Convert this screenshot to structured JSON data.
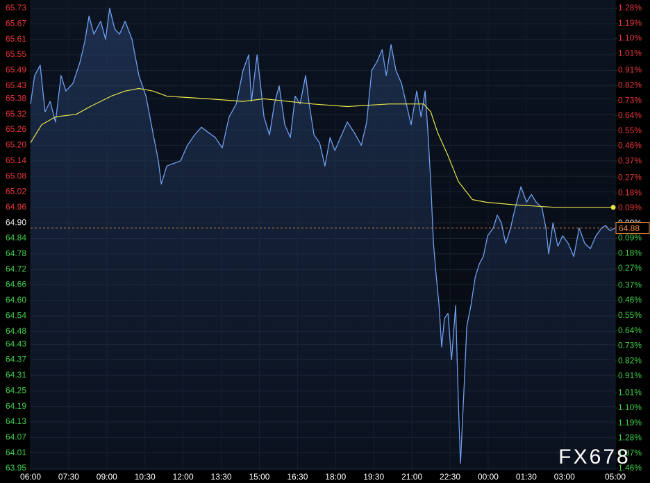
{
  "chart_data": {
    "type": "line",
    "watermark": "FX678",
    "current_price": 64.88,
    "xlim": [
      0,
      23
    ],
    "xticks": [
      {
        "value": 0,
        "label": "06:00"
      },
      {
        "value": 1.5,
        "label": "07:30"
      },
      {
        "value": 3,
        "label": "09:00"
      },
      {
        "value": 4.5,
        "label": "10:30"
      },
      {
        "value": 6,
        "label": "12:00"
      },
      {
        "value": 7.5,
        "label": "13:30"
      },
      {
        "value": 9,
        "label": "15:00"
      },
      {
        "value": 10.5,
        "label": "16:30"
      },
      {
        "value": 12,
        "label": "18:00"
      },
      {
        "value": 13.5,
        "label": "19:30"
      },
      {
        "value": 15,
        "label": "21:00"
      },
      {
        "value": 16.5,
        "label": "22:30"
      },
      {
        "value": 18,
        "label": "00:00"
      },
      {
        "value": 19.5,
        "label": "01:30"
      },
      {
        "value": 21,
        "label": "03:00"
      },
      {
        "value": 23,
        "label": "05:00"
      }
    ],
    "ylim": [
      63.95,
      65.73
    ],
    "yticks": [
      65.73,
      65.67,
      65.61,
      65.55,
      65.49,
      65.43,
      65.38,
      65.32,
      65.26,
      65.2,
      65.14,
      65.08,
      65.02,
      64.96,
      64.9,
      64.84,
      64.78,
      64.72,
      64.66,
      64.6,
      64.54,
      64.48,
      64.43,
      64.37,
      64.31,
      64.25,
      64.19,
      64.13,
      64.07,
      64.01,
      63.95
    ],
    "yticklabels": [
      "65.73",
      "65.67",
      "65.61",
      "65.55",
      "65.49",
      "65.43",
      "65.38",
      "65.32",
      "65.26",
      "65.20",
      "65.14",
      "65.08",
      "65.02",
      "64.96",
      "64.90",
      "64.84",
      "64.78",
      "64.72",
      "64.66",
      "64.60",
      "64.54",
      "64.48",
      "64.43",
      "64.37",
      "64.31",
      "64.25",
      "64.19",
      "64.13",
      "64.07",
      "64.01",
      "63.95"
    ],
    "y2lim": [
      -1.46,
      1.28
    ],
    "y2ticks": [
      {
        "value": 1.28,
        "label": "1.28%"
      },
      {
        "value": 1.19,
        "label": "1.19%"
      },
      {
        "value": 1.1,
        "label": "1.10%"
      },
      {
        "value": 1.01,
        "label": "1.01%"
      },
      {
        "value": 0.91,
        "label": "0.91%"
      },
      {
        "value": 0.82,
        "label": "0.82%"
      },
      {
        "value": 0.73,
        "label": "0.73%"
      },
      {
        "value": 0.64,
        "label": "0.64%"
      },
      {
        "value": 0.55,
        "label": "0.55%"
      },
      {
        "value": 0.46,
        "label": "0.46%"
      },
      {
        "value": 0.37,
        "label": "0.37%"
      },
      {
        "value": 0.27,
        "label": "0.27%"
      },
      {
        "value": 0.18,
        "label": "0.18%"
      },
      {
        "value": 0.09,
        "label": "0.09%"
      },
      {
        "value": 0,
        "label": "0.00%"
      },
      {
        "value": -0.09,
        "label": "0.09%"
      },
      {
        "value": -0.18,
        "label": "0.18%"
      },
      {
        "value": -0.27,
        "label": "0.27%"
      },
      {
        "value": -0.37,
        "label": "0.37%"
      },
      {
        "value": -0.46,
        "label": "0.46%"
      },
      {
        "value": -0.55,
        "label": "0.55%"
      },
      {
        "value": -0.64,
        "label": "0.64%"
      },
      {
        "value": -0.73,
        "label": "0.73%"
      },
      {
        "value": -0.82,
        "label": "0.82%"
      },
      {
        "value": -0.91,
        "label": "0.91%"
      },
      {
        "value": -1.01,
        "label": "1.01%"
      },
      {
        "value": -1.1,
        "label": "1.10%"
      },
      {
        "value": -1.19,
        "label": "1.19%"
      },
      {
        "value": -1.28,
        "label": "1.28%"
      },
      {
        "value": -1.37,
        "label": "1.37%"
      },
      {
        "value": -1.46,
        "label": "1.46%"
      }
    ],
    "grid": true,
    "series": [
      {
        "color": "#6f9ff0",
        "x": [
          0,
          0.16,
          0.38,
          0.57,
          0.77,
          0.98,
          1.2,
          1.39,
          1.67,
          1.94,
          2.13,
          2.3,
          2.49,
          2.76,
          2.95,
          3.11,
          3.31,
          3.5,
          3.72,
          3.99,
          4.26,
          4.54,
          4.81,
          5.03,
          5.14,
          5.36,
          5.63,
          5.9,
          6.17,
          6.45,
          6.72,
          6.99,
          7.27,
          7.54,
          7.81,
          8.09,
          8.36,
          8.58,
          8.69,
          8.91,
          9.04,
          9.18,
          9.4,
          9.59,
          9.78,
          10,
          10.22,
          10.41,
          10.6,
          10.82,
          10.96,
          11.15,
          11.37,
          11.58,
          11.78,
          11.97,
          12.19,
          12.46,
          12.73,
          13.01,
          13.22,
          13.42,
          13.61,
          13.83,
          13.99,
          14.18,
          14.37,
          14.59,
          14.78,
          14.97,
          15.19,
          15.36,
          15.52,
          15.63,
          15.74,
          15.85,
          15.96,
          16.07,
          16.17,
          16.28,
          16.42,
          16.56,
          16.72,
          16.83,
          16.91,
          17.05,
          17.16,
          17.32,
          17.49,
          17.65,
          17.81,
          17.98,
          18.2,
          18.36,
          18.52,
          18.69,
          18.88,
          19.07,
          19.29,
          19.51,
          19.7,
          19.89,
          20.11,
          20.27,
          20.38,
          20.55,
          20.74,
          20.93,
          21.15,
          21.37,
          21.58,
          21.8,
          22.02,
          22.24,
          22.46,
          22.62,
          22.79,
          23
        ],
        "values": [
          65.36,
          65.47,
          65.51,
          65.33,
          65.37,
          65.29,
          65.47,
          65.41,
          65.44,
          65.52,
          65.6,
          65.7,
          65.63,
          65.68,
          65.61,
          65.73,
          65.65,
          65.63,
          65.68,
          65.61,
          65.47,
          65.39,
          65.25,
          65.14,
          65.05,
          65.12,
          65.13,
          65.14,
          65.2,
          65.24,
          65.27,
          65.25,
          65.23,
          65.19,
          65.31,
          65.36,
          65.49,
          65.55,
          65.37,
          65.55,
          65.44,
          65.31,
          65.24,
          65.36,
          65.43,
          65.28,
          65.23,
          65.39,
          65.36,
          65.47,
          65.36,
          65.24,
          65.21,
          65.12,
          65.23,
          65.18,
          65.23,
          65.29,
          65.25,
          65.2,
          65.29,
          65.49,
          65.52,
          65.57,
          65.47,
          65.59,
          65.49,
          65.44,
          65.36,
          65.28,
          65.41,
          65.31,
          65.41,
          65.25,
          65.06,
          64.82,
          64.69,
          64.58,
          64.42,
          64.53,
          64.55,
          64.37,
          64.58,
          64.2,
          63.97,
          64.26,
          64.5,
          64.58,
          64.69,
          64.74,
          64.77,
          64.85,
          64.88,
          64.93,
          64.9,
          64.82,
          64.88,
          64.96,
          65.04,
          64.98,
          65.01,
          64.98,
          64.96,
          64.88,
          64.78,
          64.9,
          64.81,
          64.85,
          64.82,
          64.77,
          64.88,
          64.82,
          64.8,
          64.85,
          64.88,
          64.89,
          64.87,
          64.88
        ]
      },
      {
        "color": "#e6e34a",
        "x": [
          0,
          0.44,
          0.98,
          1.8,
          2.35,
          3.17,
          3.72,
          4.26,
          4.81,
          5.36,
          6.99,
          8.36,
          9.18,
          11.09,
          12.46,
          14.1,
          15.46,
          15.74,
          16.01,
          16.42,
          16.83,
          17.38,
          17.92,
          19.02,
          20.66,
          22.92
        ],
        "values": [
          65.21,
          65.28,
          65.31,
          65.32,
          65.35,
          65.39,
          65.41,
          65.42,
          65.41,
          65.39,
          65.38,
          65.37,
          65.38,
          65.36,
          65.35,
          65.36,
          65.36,
          65.33,
          65.25,
          65.16,
          65.06,
          64.99,
          64.98,
          64.97,
          64.96,
          64.96
        ]
      }
    ]
  }
}
